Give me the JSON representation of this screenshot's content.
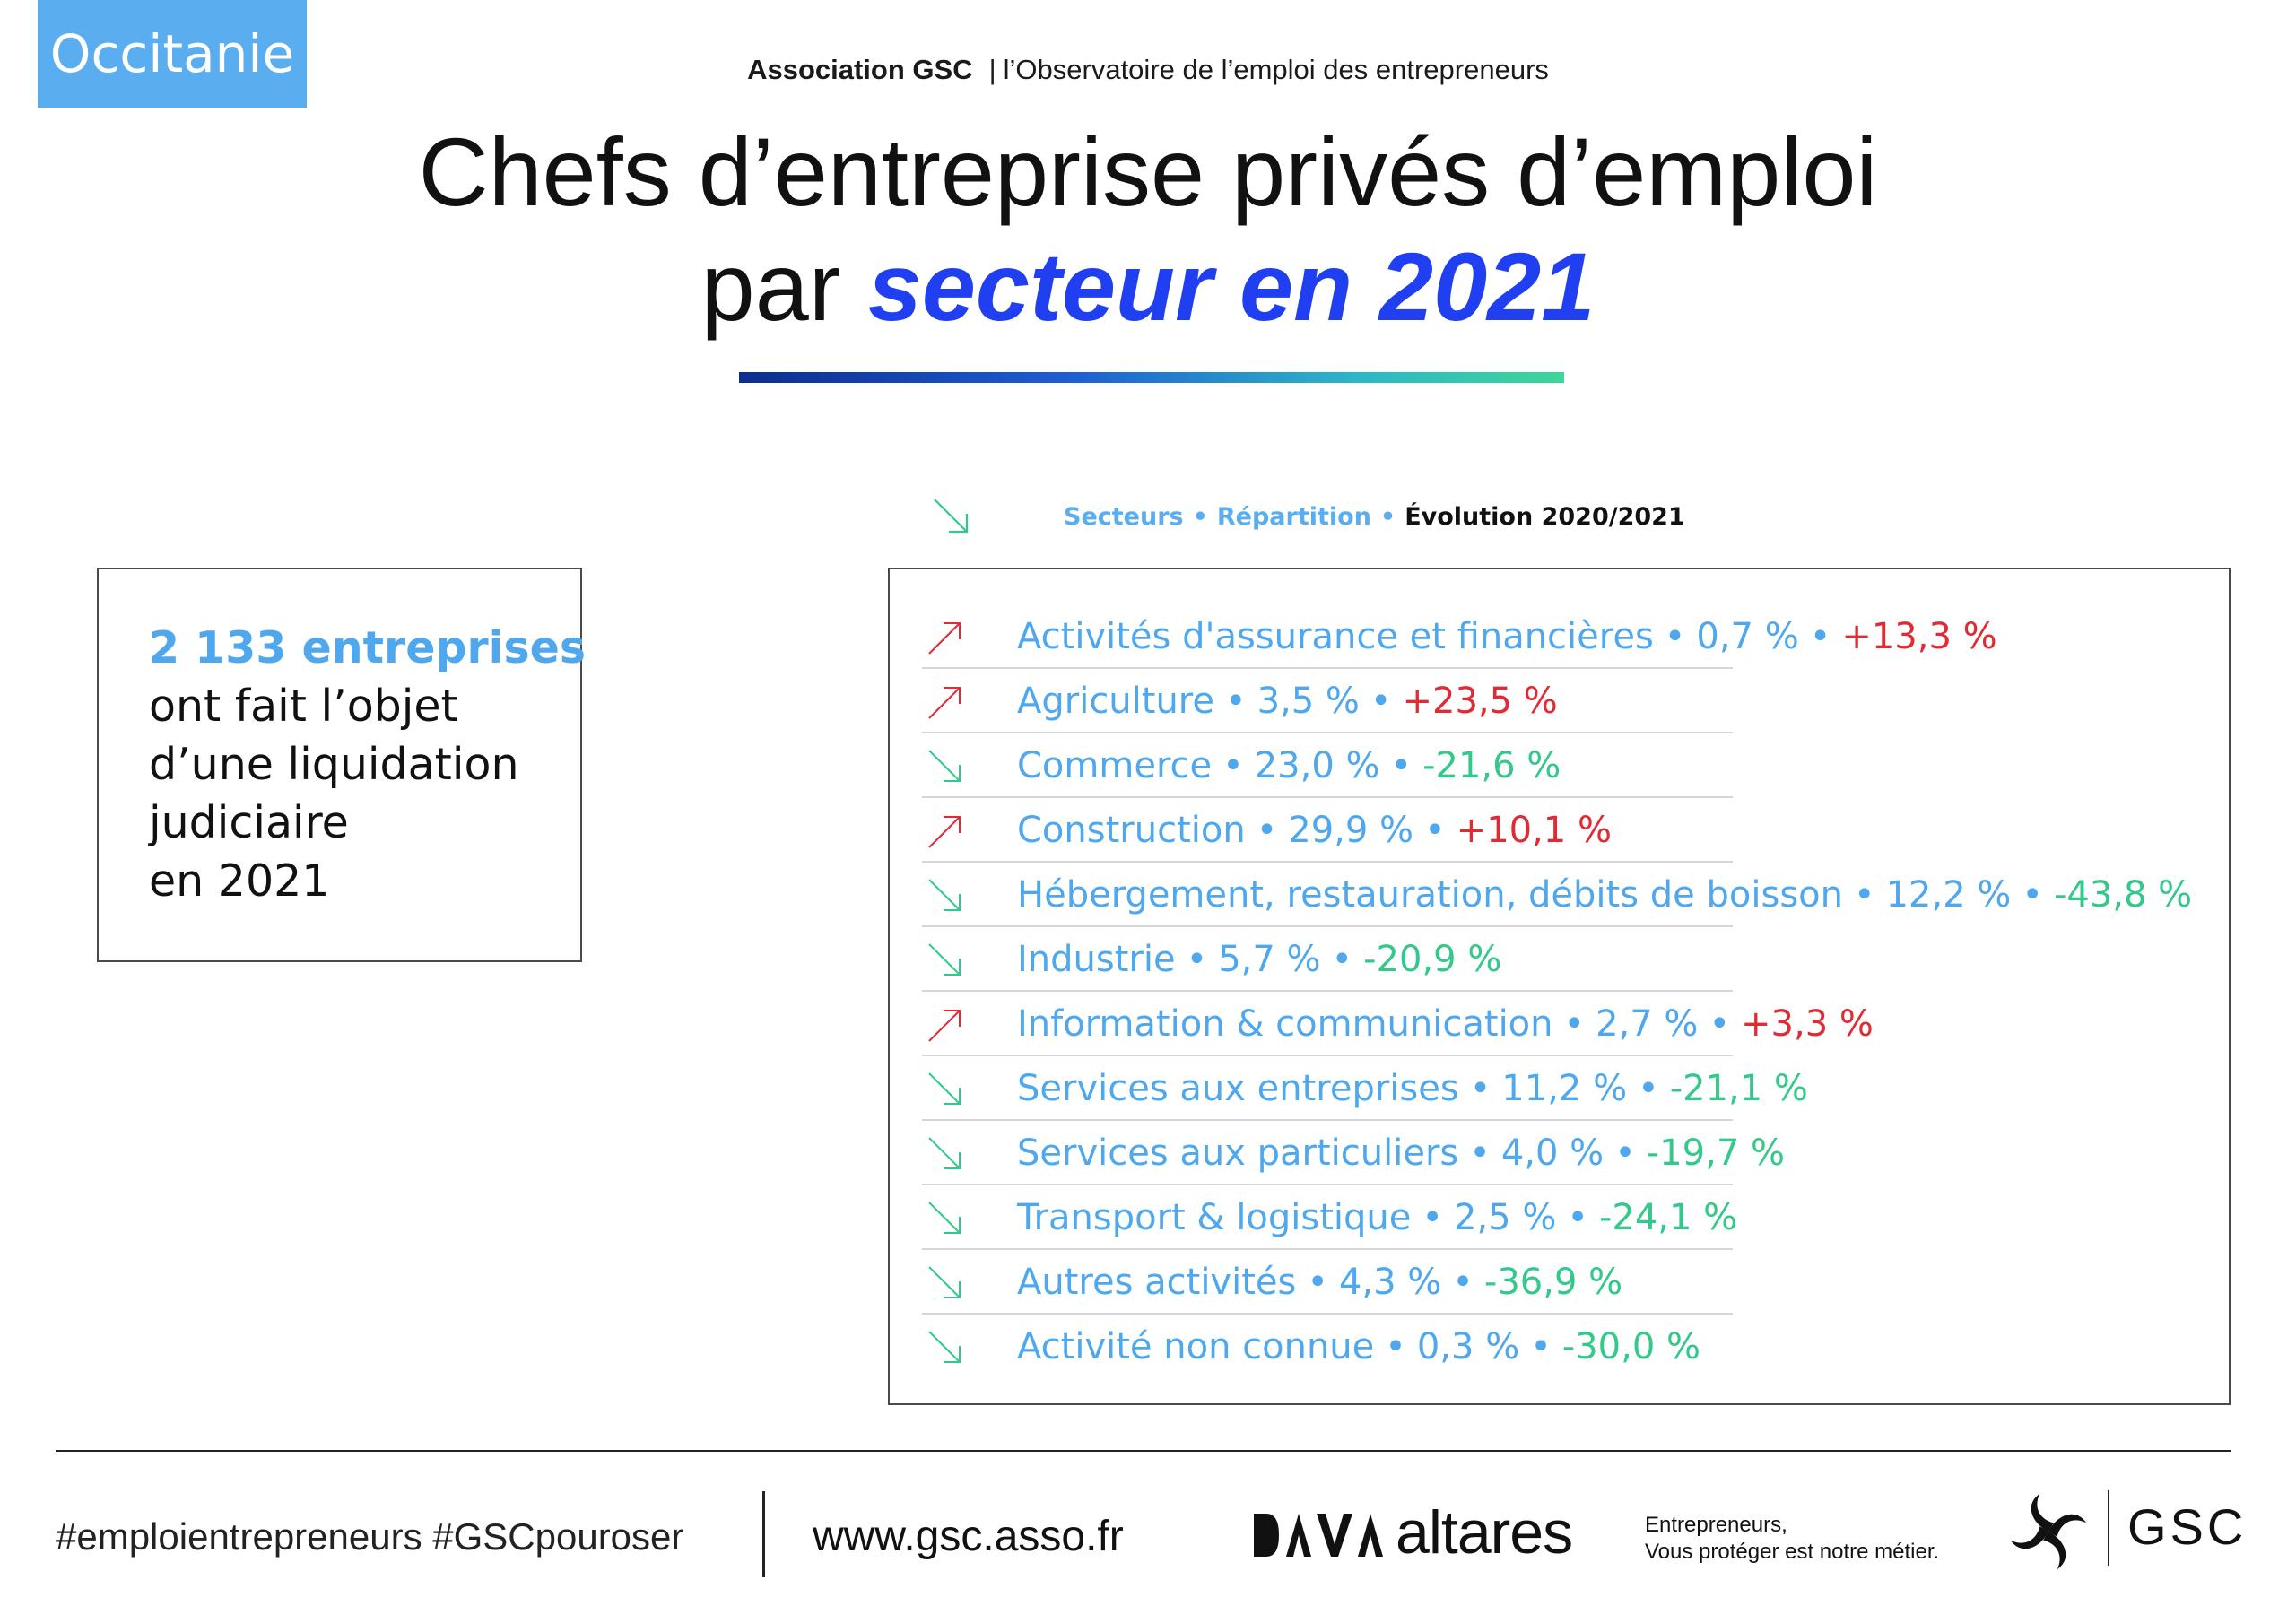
{
  "header": {
    "region": "Occitanie",
    "org_name": "Association GSC",
    "org_separator": "|",
    "org_subtitle": "l’Observatoire de l’emploi des entrepreneurs",
    "title_line1": "Chefs d’entreprise privés d’emploi",
    "title_line2_plain": "par ",
    "title_line2_accent": "secteur en 2021"
  },
  "legend": {
    "col1": "Secteurs",
    "col2": "Répartition",
    "col3": "Évolution 2020/2021",
    "dot": "•"
  },
  "summary": {
    "highlight": "2 133 entreprises",
    "line2": "ont fait l’objet",
    "line3": "d’une liquidation",
    "line4": "judiciaire",
    "line5": "en 2021"
  },
  "sectors": [
    {
      "name": "Activités d'assurance et financières",
      "share": "0,7 %",
      "change": "+13,3 %",
      "trend": "up"
    },
    {
      "name": "Agriculture",
      "share": "3,5 %",
      "change": "+23,5 %",
      "trend": "up"
    },
    {
      "name": "Commerce",
      "share": "23,0 %",
      "change": "-21,6 %",
      "trend": "down"
    },
    {
      "name": "Construction",
      "share": "29,9 %",
      "change": "+10,1 %",
      "trend": "up"
    },
    {
      "name": "Hébergement, restauration, débits de boisson",
      "share": "12,2 %",
      "change": "-43,8 %",
      "trend": "down"
    },
    {
      "name": "Industrie",
      "share": "5,7 %",
      "change": "-20,9 %",
      "trend": "down"
    },
    {
      "name": "Information & communication",
      "share": "2,7 %",
      "change": "+3,3 %",
      "trend": "up"
    },
    {
      "name": "Services aux entreprises",
      "share": "11,2 %",
      "change": "-21,1 %",
      "trend": "down"
    },
    {
      "name": "Services aux particuliers",
      "share": "4,0 %",
      "change": "-19,7 %",
      "trend": "down"
    },
    {
      "name": "Transport & logistique",
      "share": "2,5 %",
      "change": "-24,1 %",
      "trend": "down"
    },
    {
      "name": "Autres activités",
      "share": "4,3 %",
      "change": "-36,9 %",
      "trend": "down"
    },
    {
      "name": "Activité non connue",
      "share": "0,3 %",
      "change": "-30,0 %",
      "trend": "down"
    }
  ],
  "footer": {
    "hashtags": "#emploientrepreneurs #GSCpouroser",
    "website": "www.gsc.asso.fr",
    "partner_logo": "altares",
    "tagline_line1": "Entrepreneurs,",
    "tagline_line2": "Vous protéger est notre métier.",
    "brand": "GSC"
  },
  "colors": {
    "badge": "#5aaef0",
    "accent_blue": "#1f3ff0",
    "sector_blue": "#4fa8ee",
    "up_red": "#e02b35",
    "down_green": "#34c98b"
  }
}
